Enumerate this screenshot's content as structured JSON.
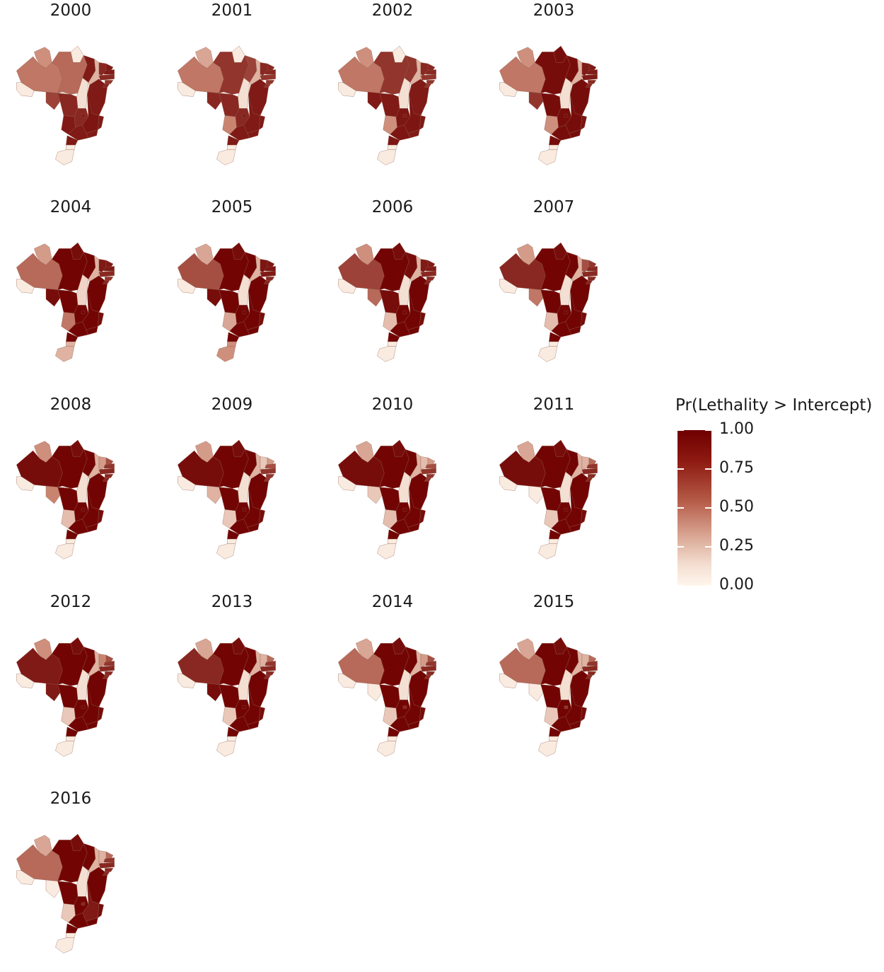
{
  "colors": {
    "low": "#fff6ec",
    "mid": "#c98470",
    "high": "#6e0000",
    "border": "#8c5a4a"
  },
  "years": [
    "2000",
    "2001",
    "2002",
    "2003",
    "2004",
    "2005",
    "2006",
    "2007",
    "2008",
    "2009",
    "2010",
    "2011",
    "2012",
    "2013",
    "2014",
    "2015",
    "2016"
  ],
  "regions": [
    "RR",
    "AP",
    "AM",
    "AC",
    "RO",
    "PA",
    "MA",
    "TO",
    "PI",
    "CE",
    "RN",
    "PB",
    "PE",
    "AL",
    "SE",
    "BA",
    "MT",
    "MS",
    "GO",
    "DF",
    "MG",
    "ES",
    "RJ",
    "SP",
    "PR",
    "SC",
    "RS"
  ],
  "probabilities": {
    "2000": {
      "RR": 0.45,
      "AP": 0.05,
      "AM": 0.55,
      "AC": 0.05,
      "RO": 0.75,
      "PA": 0.6,
      "MA": 0.9,
      "TO": 0.1,
      "PI": 0.3,
      "CE": 0.85,
      "RN": 0.9,
      "PB": 0.9,
      "PE": 0.85,
      "AL": 0.8,
      "SE": 0.85,
      "BA": 0.9,
      "MT": 0.85,
      "MS": 0.9,
      "GO": 0.85,
      "DF": 0.9,
      "MG": 0.92,
      "ES": 0.9,
      "RJ": 0.9,
      "SP": 0.9,
      "PR": 0.9,
      "SC": 0.05,
      "RS": 0.05
    },
    "2001": {
      "RR": 0.35,
      "AP": 0.05,
      "AM": 0.55,
      "AC": 0.05,
      "RO": 0.85,
      "PA": 0.8,
      "MA": 0.75,
      "TO": 0.1,
      "PI": 0.3,
      "CE": 0.85,
      "RN": 0.85,
      "PB": 0.85,
      "PE": 0.8,
      "AL": 0.8,
      "SE": 0.8,
      "BA": 0.9,
      "MT": 0.85,
      "MS": 0.5,
      "GO": 0.85,
      "DF": 0.9,
      "MG": 0.9,
      "ES": 0.9,
      "RJ": 0.9,
      "SP": 0.9,
      "PR": 0.9,
      "SC": 0.05,
      "RS": 0.05
    },
    "2002": {
      "RR": 0.45,
      "AP": 0.05,
      "AM": 0.55,
      "AC": 0.05,
      "RO": 0.9,
      "PA": 0.8,
      "MA": 0.8,
      "TO": 0.1,
      "PI": 0.3,
      "CE": 0.85,
      "RN": 0.85,
      "PB": 0.85,
      "PE": 0.8,
      "AL": 0.8,
      "SE": 0.8,
      "BA": 0.9,
      "MT": 0.9,
      "MS": 0.45,
      "GO": 0.92,
      "DF": 0.9,
      "MG": 0.92,
      "ES": 0.9,
      "RJ": 0.9,
      "SP": 0.92,
      "PR": 0.92,
      "SC": 0.05,
      "RS": 0.05
    },
    "2003": {
      "RR": 0.45,
      "AP": 0.95,
      "AM": 0.55,
      "AC": 0.05,
      "RO": 0.8,
      "PA": 0.95,
      "MA": 0.95,
      "TO": 0.1,
      "PI": 0.3,
      "CE": 0.9,
      "RN": 0.9,
      "PB": 0.9,
      "PE": 0.9,
      "AL": 0.85,
      "SE": 0.85,
      "BA": 0.95,
      "MT": 0.95,
      "MS": 0.45,
      "GO": 0.95,
      "DF": 0.95,
      "MG": 0.95,
      "ES": 0.92,
      "RJ": 0.95,
      "SP": 0.95,
      "PR": 0.95,
      "SC": 0.05,
      "RS": 0.05
    },
    "2004": {
      "RR": 0.4,
      "AP": 0.95,
      "AM": 0.6,
      "AC": 0.05,
      "RO": 0.95,
      "PA": 0.98,
      "MA": 0.98,
      "TO": 0.15,
      "PI": 0.3,
      "CE": 0.9,
      "RN": 0.9,
      "PB": 0.9,
      "PE": 0.85,
      "AL": 0.8,
      "SE": 0.85,
      "BA": 0.98,
      "MT": 0.98,
      "MS": 0.55,
      "GO": 0.98,
      "DF": 0.98,
      "MG": 0.98,
      "ES": 0.95,
      "RJ": 0.98,
      "SP": 0.98,
      "PR": 0.98,
      "SC": 0.3,
      "RS": 0.3
    },
    "2005": {
      "RR": 0.35,
      "AP": 0.95,
      "AM": 0.7,
      "AC": 0.05,
      "RO": 0.95,
      "PA": 0.98,
      "MA": 0.98,
      "TO": 0.1,
      "PI": 0.3,
      "CE": 0.92,
      "RN": 0.92,
      "PB": 0.92,
      "PE": 0.9,
      "AL": 0.85,
      "SE": 0.85,
      "BA": 0.98,
      "MT": 0.98,
      "MS": 0.35,
      "GO": 0.98,
      "DF": 0.98,
      "MG": 0.98,
      "ES": 0.95,
      "RJ": 0.98,
      "SP": 0.98,
      "PR": 0.98,
      "SC": 0.45,
      "RS": 0.45
    },
    "2006": {
      "RR": 0.45,
      "AP": 0.95,
      "AM": 0.75,
      "AC": 0.05,
      "RO": 0.6,
      "PA": 0.98,
      "MA": 0.95,
      "TO": 0.1,
      "PI": 0.3,
      "CE": 0.9,
      "RN": 0.9,
      "PB": 0.9,
      "PE": 0.85,
      "AL": 0.85,
      "SE": 0.85,
      "BA": 0.98,
      "MT": 0.95,
      "MS": 0.25,
      "GO": 0.98,
      "DF": 0.98,
      "MG": 0.98,
      "ES": 0.95,
      "RJ": 0.98,
      "SP": 0.98,
      "PR": 0.98,
      "SC": 0.05,
      "RS": 0.05
    },
    "2007": {
      "RR": 0.4,
      "AP": 0.95,
      "AM": 0.85,
      "AC": 0.05,
      "RO": 0.55,
      "PA": 0.98,
      "MA": 0.98,
      "TO": 0.1,
      "PI": 0.3,
      "CE": 0.7,
      "RN": 0.8,
      "PB": 0.85,
      "PE": 0.85,
      "AL": 0.85,
      "SE": 0.85,
      "BA": 0.98,
      "MT": 0.98,
      "MS": 0.25,
      "GO": 0.98,
      "DF": 0.98,
      "MG": 0.98,
      "ES": 0.95,
      "RJ": 0.98,
      "SP": 0.98,
      "PR": 0.98,
      "SC": 0.05,
      "RS": 0.05
    },
    "2008": {
      "RR": 0.45,
      "AP": 0.95,
      "AM": 0.95,
      "AC": 0.05,
      "RO": 0.5,
      "PA": 0.98,
      "MA": 0.98,
      "TO": 0.1,
      "PI": 0.3,
      "CE": 0.4,
      "RN": 0.7,
      "PB": 0.8,
      "PE": 0.85,
      "AL": 0.85,
      "SE": 0.85,
      "BA": 0.98,
      "MT": 0.98,
      "MS": 0.25,
      "GO": 0.98,
      "DF": 0.98,
      "MG": 0.98,
      "ES": 0.95,
      "RJ": 0.98,
      "SP": 0.98,
      "PR": 0.98,
      "SC": 0.05,
      "RS": 0.05
    },
    "2009": {
      "RR": 0.4,
      "AP": 0.95,
      "AM": 0.95,
      "AC": 0.05,
      "RO": 0.3,
      "PA": 0.98,
      "MA": 0.98,
      "TO": 0.1,
      "PI": 0.3,
      "CE": 0.2,
      "RN": 0.4,
      "PB": 0.7,
      "PE": 0.8,
      "AL": 0.8,
      "SE": 0.8,
      "BA": 0.98,
      "MT": 0.98,
      "MS": 0.2,
      "GO": 0.98,
      "DF": 0.98,
      "MG": 0.98,
      "ES": 0.95,
      "RJ": 0.98,
      "SP": 0.98,
      "PR": 0.98,
      "SC": 0.05,
      "RS": 0.05
    },
    "2010": {
      "RR": 0.35,
      "AP": 0.95,
      "AM": 0.95,
      "AC": 0.05,
      "RO": 0.2,
      "PA": 0.98,
      "MA": 0.98,
      "TO": 0.1,
      "PI": 0.3,
      "CE": 0.25,
      "RN": 0.4,
      "PB": 0.7,
      "PE": 0.8,
      "AL": 0.8,
      "SE": 0.8,
      "BA": 0.98,
      "MT": 0.98,
      "MS": 0.25,
      "GO": 0.98,
      "DF": 0.98,
      "MG": 0.98,
      "ES": 0.95,
      "RJ": 0.98,
      "SP": 0.98,
      "PR": 0.98,
      "SC": 0.05,
      "RS": 0.05
    },
    "2011": {
      "RR": 0.35,
      "AP": 0.95,
      "AM": 0.95,
      "AC": 0.05,
      "RO": 0.05,
      "PA": 0.98,
      "MA": 0.98,
      "TO": 0.1,
      "PI": 0.3,
      "CE": 0.3,
      "RN": 0.6,
      "PB": 0.8,
      "PE": 0.85,
      "AL": 0.85,
      "SE": 0.85,
      "BA": 0.98,
      "MT": 0.98,
      "MS": 0.2,
      "GO": 0.98,
      "DF": 0.98,
      "MG": 0.98,
      "ES": 0.95,
      "RJ": 0.98,
      "SP": 0.98,
      "PR": 0.98,
      "SC": 0.05,
      "RS": 0.05
    },
    "2012": {
      "RR": 0.45,
      "AP": 0.95,
      "AM": 0.9,
      "AC": 0.05,
      "RO": 0.9,
      "PA": 0.98,
      "MA": 0.98,
      "TO": 0.1,
      "PI": 0.3,
      "CE": 0.5,
      "RN": 0.7,
      "PB": 0.8,
      "PE": 0.85,
      "AL": 0.85,
      "SE": 0.85,
      "BA": 0.98,
      "MT": 0.98,
      "MS": 0.2,
      "GO": 0.98,
      "DF": 0.98,
      "MG": 0.98,
      "ES": 0.95,
      "RJ": 0.98,
      "SP": 0.98,
      "PR": 0.98,
      "SC": 0.05,
      "RS": 0.05
    },
    "2013": {
      "RR": 0.35,
      "AP": 0.95,
      "AM": 0.85,
      "AC": 0.05,
      "RO": 0.95,
      "PA": 0.98,
      "MA": 0.98,
      "TO": 0.1,
      "PI": 0.3,
      "CE": 0.3,
      "RN": 0.6,
      "PB": 0.8,
      "PE": 0.85,
      "AL": 0.85,
      "SE": 0.85,
      "BA": 0.98,
      "MT": 0.98,
      "MS": 0.2,
      "GO": 0.98,
      "DF": 0.98,
      "MG": 0.98,
      "ES": 0.95,
      "RJ": 0.98,
      "SP": 0.98,
      "PR": 0.98,
      "SC": 0.05,
      "RS": 0.05
    },
    "2014": {
      "RR": 0.35,
      "AP": 0.95,
      "AM": 0.6,
      "AC": 0.05,
      "RO": 0.05,
      "PA": 0.98,
      "MA": 0.98,
      "TO": 0.1,
      "PI": 0.3,
      "CE": 0.4,
      "RN": 0.7,
      "PB": 0.8,
      "PE": 0.85,
      "AL": 0.85,
      "SE": 0.85,
      "BA": 0.98,
      "MT": 0.98,
      "MS": 0.2,
      "GO": 0.98,
      "DF": 0.85,
      "MG": 0.98,
      "ES": 0.95,
      "RJ": 0.98,
      "SP": 0.98,
      "PR": 0.98,
      "SC": 0.05,
      "RS": 0.05
    },
    "2015": {
      "RR": 0.35,
      "AP": 0.95,
      "AM": 0.6,
      "AC": 0.05,
      "RO": 0.05,
      "PA": 0.98,
      "MA": 0.98,
      "TO": 0.1,
      "PI": 0.3,
      "CE": 0.3,
      "RN": 0.6,
      "PB": 0.8,
      "PE": 0.85,
      "AL": 0.85,
      "SE": 0.85,
      "BA": 0.98,
      "MT": 0.98,
      "MS": 0.2,
      "GO": 0.98,
      "DF": 0.8,
      "MG": 0.98,
      "ES": 0.95,
      "RJ": 0.98,
      "SP": 0.98,
      "PR": 0.98,
      "SC": 0.05,
      "RS": 0.05
    },
    "2016": {
      "RR": 0.35,
      "AP": 0.95,
      "AM": 0.6,
      "AC": 0.05,
      "RO": 0.05,
      "PA": 0.98,
      "MA": 0.98,
      "TO": 0.1,
      "PI": 0.3,
      "CE": 0.3,
      "RN": 0.6,
      "PB": 0.8,
      "PE": 0.85,
      "AL": 0.85,
      "SE": 0.85,
      "BA": 0.98,
      "MT": 0.98,
      "MS": 0.2,
      "GO": 0.98,
      "DF": 0.85,
      "MG": 0.9,
      "ES": 0.95,
      "RJ": 0.98,
      "SP": 0.98,
      "PR": 0.98,
      "SC": 0.05,
      "RS": 0.05
    }
  },
  "legend": {
    "title": "Pr(Lethality > Intercept)",
    "labels": [
      "1.00",
      "0.75",
      "0.50",
      "0.25",
      "0.00"
    ],
    "values": [
      1.0,
      0.75,
      0.5,
      0.25,
      0.0
    ]
  }
}
